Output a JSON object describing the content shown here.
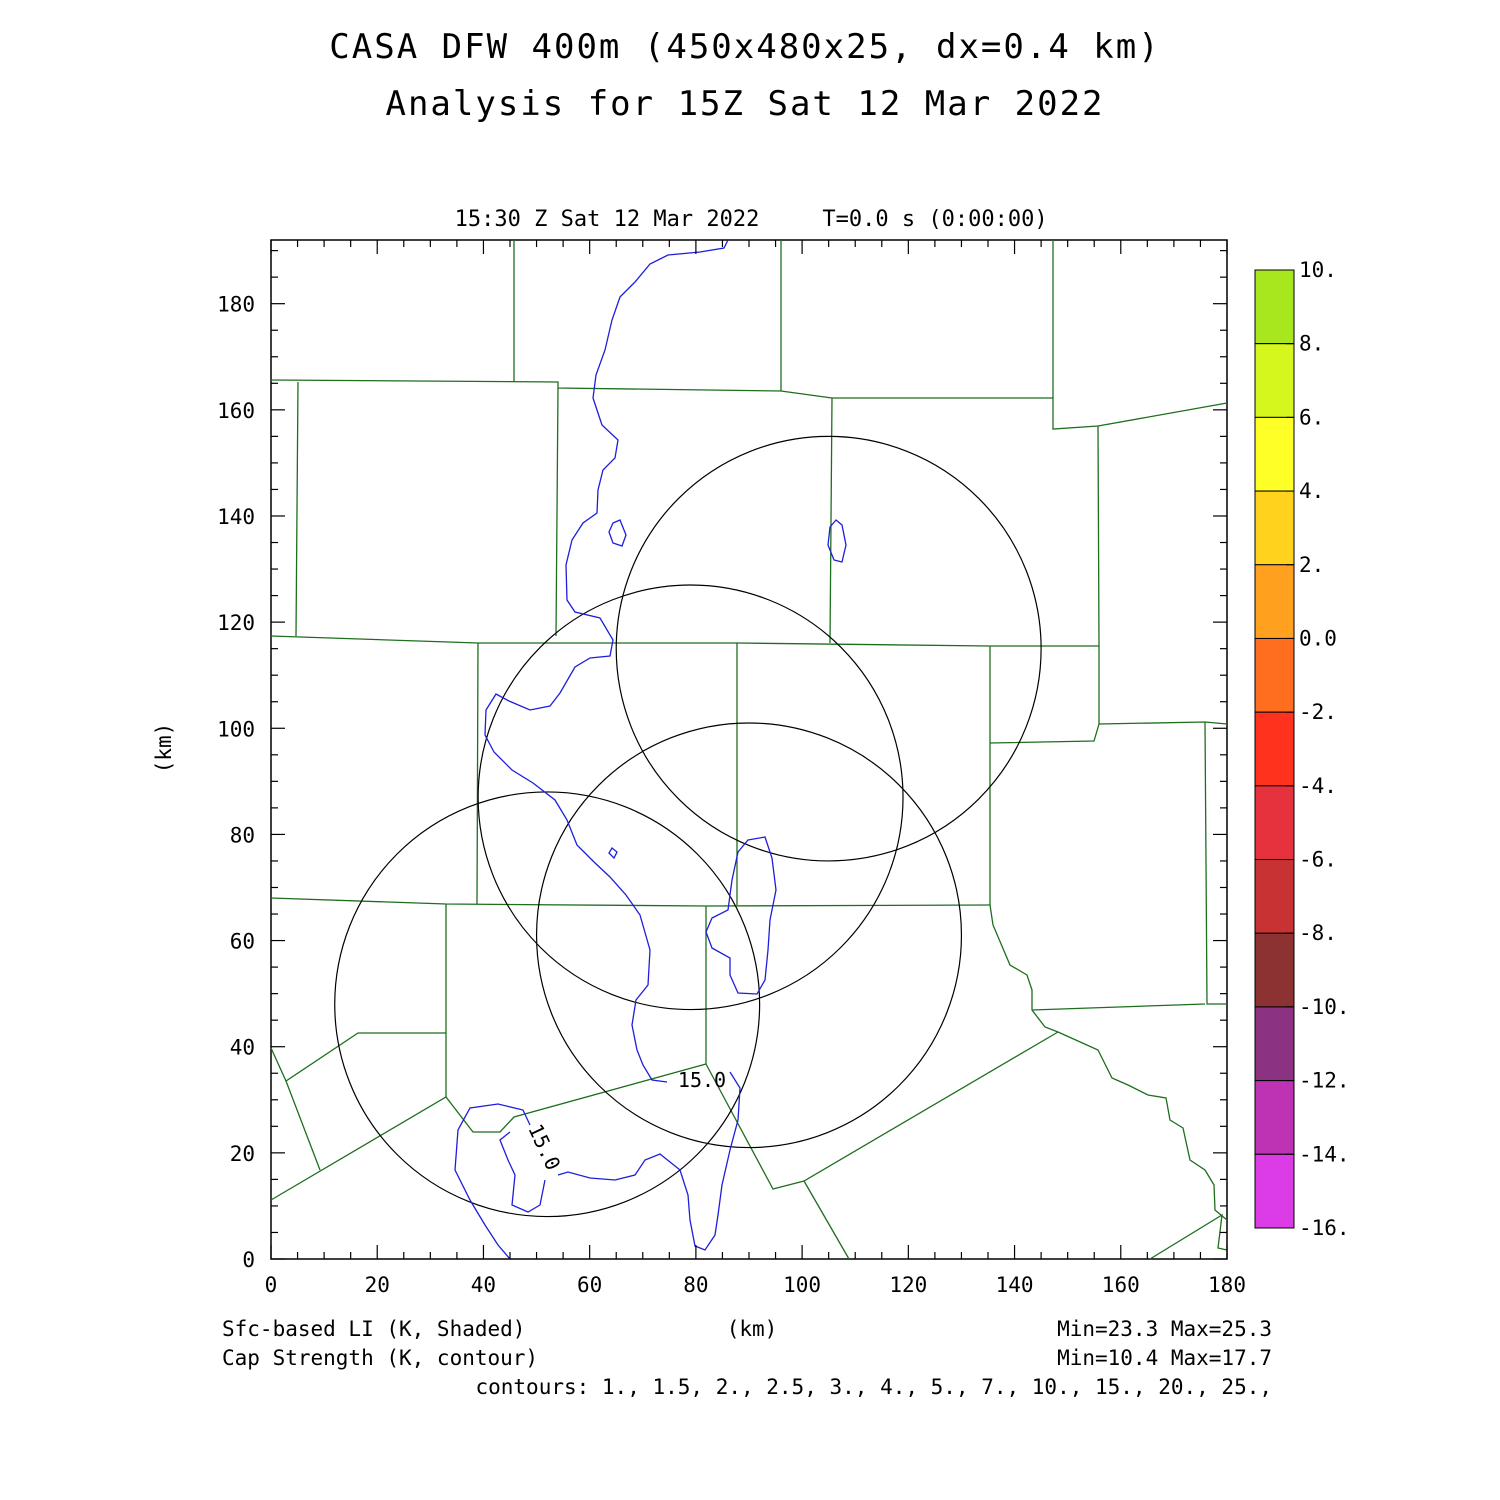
{
  "title_line1": "CASA DFW 400m (450x480x25, dx=0.4 km)",
  "title_line2": "Analysis for 15Z Sat 12 Mar 2022",
  "valid_time": "15:30 Z Sat 12 Mar 2022",
  "forecast_time": "T=0.0 s (0:00:00)",
  "axes": {
    "xlabel": "(km)",
    "ylabel": "(km)",
    "xlim": [
      0,
      180
    ],
    "ylim": [
      0,
      192
    ],
    "x_ticks": [
      "0",
      "20",
      "40",
      "60",
      "80",
      "100",
      "120",
      "140",
      "160",
      "180"
    ],
    "y_ticks": [
      "0",
      "20",
      "40",
      "60",
      "80",
      "100",
      "120",
      "140",
      "160",
      "180"
    ]
  },
  "colorbar": {
    "labels": [
      "10.",
      "8.",
      "6.",
      "4.",
      "2.",
      "0.0",
      "-2.",
      "-4.",
      "-6.",
      "-8.",
      "-10.",
      "-12.",
      "-14.",
      "-16."
    ],
    "colors": [
      "#a8e61e",
      "#d6f71e",
      "#ffff28",
      "#ffd21e",
      "#ffa01e",
      "#ff6e1e",
      "#ff321e",
      "#e6323c",
      "#c83232",
      "#8c3232",
      "#8c3282",
      "#be32b4",
      "#dc3ce6"
    ]
  },
  "field1": {
    "label": "Sfc-based LI (K, Shaded)",
    "stats": "Min=23.3 Max=25.3"
  },
  "field2": {
    "label": "Cap Strength (K, contour)",
    "stats": "Min=10.4 Max=17.7"
  },
  "contours_text": "contours: 1., 1.5, 2., 2.5, 3., 4., 5., 7., 10., 15., 20., 25.,",
  "contour_labels": [
    "15.0",
    "15.0"
  ],
  "map_colors": {
    "county_lines": "#1e6e1e",
    "contour_line": "#1e1edc",
    "radar_rings": "#000000"
  },
  "radar_rings": [
    {
      "center_km": [
        105,
        115
      ],
      "radius_km": 40
    },
    {
      "center_km": [
        79,
        87
      ],
      "radius_km": 40
    },
    {
      "center_km": [
        90,
        61
      ],
      "radius_km": 40
    },
    {
      "center_km": [
        52,
        48
      ],
      "radius_km": 40
    }
  ]
}
